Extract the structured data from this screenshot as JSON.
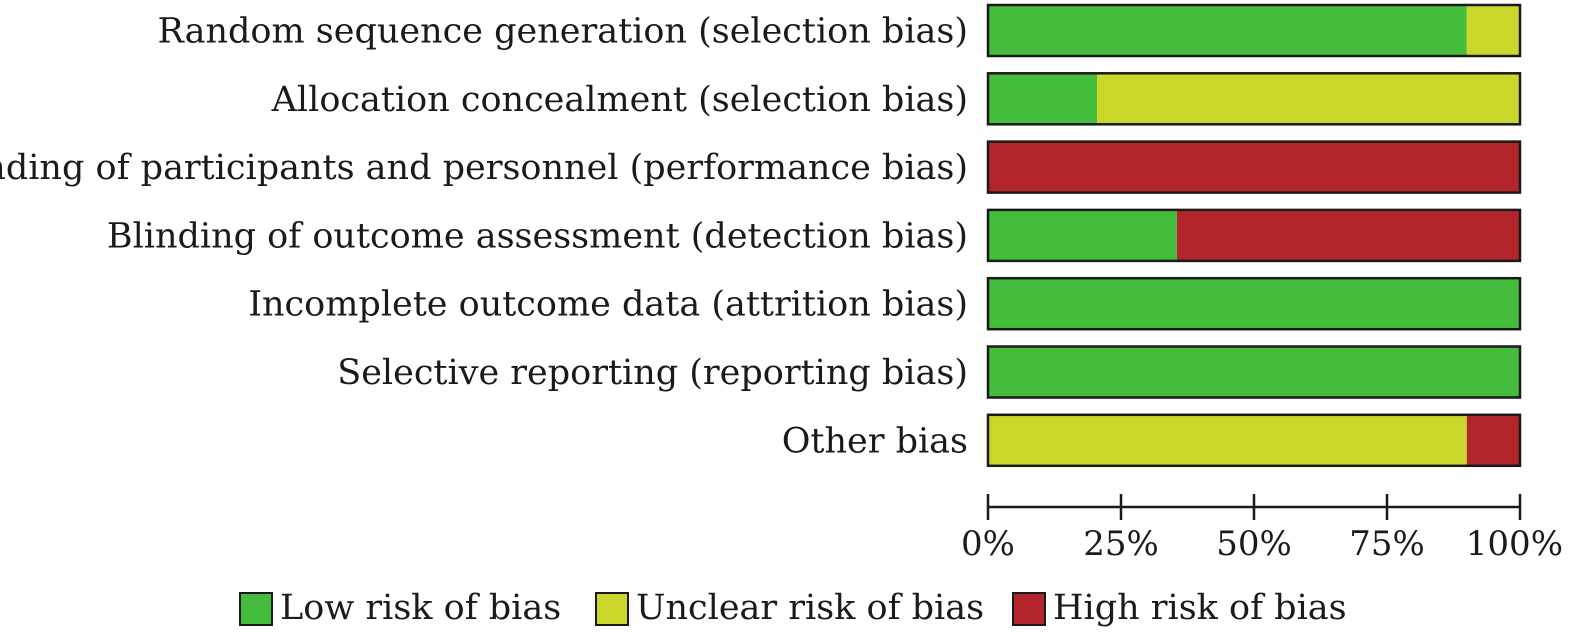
{
  "chart_data": {
    "type": "bar",
    "orientation": "horizontal",
    "stacked": true,
    "categories": [
      "Random sequence generation (selection bias)",
      "Allocation concealment (selection bias)",
      "Blinding of participants and personnel (performance bias)",
      "Blinding of outcome assessment (detection bias)",
      "Incomplete outcome data (attrition bias)",
      "Selective reporting (reporting bias)",
      "Other bias"
    ],
    "series": [
      {
        "name": "Low risk of bias",
        "color": "#45bd3c",
        "values": [
          90,
          20.5,
          0,
          35.5,
          100,
          100,
          0
        ]
      },
      {
        "name": "Unclear risk of bias",
        "color": "#cbd62b",
        "values": [
          10,
          79.5,
          0,
          0,
          0,
          0,
          90
        ]
      },
      {
        "name": "High risk of bias",
        "color": "#b2252b",
        "values": [
          0,
          0,
          100,
          64.5,
          0,
          0,
          10
        ]
      }
    ],
    "xlim": [
      0,
      100
    ],
    "xticks": [
      "0%",
      "25%",
      "50%",
      "75%",
      "100%"
    ],
    "legend_position": "bottom",
    "grid": false
  }
}
